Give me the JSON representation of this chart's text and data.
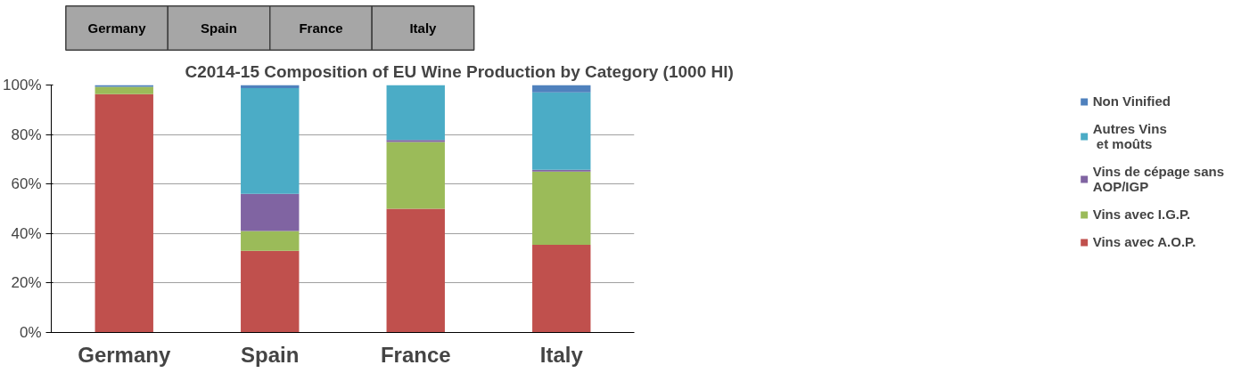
{
  "chart_data": {
    "type": "bar",
    "stacked": true,
    "title": "C2014-15 Composition of EU Wine Production by Category (1000 Hl)",
    "annotations": [
      "Germany",
      "Spain",
      "France",
      "Italy"
    ],
    "categories": [
      "Germany",
      "Spain",
      "France",
      "Italy"
    ],
    "series": [
      {
        "name": "Vins avec A.O.P.",
        "color": "#c0504d",
        "values": [
          96.3,
          33,
          50,
          35.4
        ]
      },
      {
        "name": "Vins avec I.G.P.",
        "color": "#9bbb59",
        "values": [
          3,
          8,
          27,
          29.6
        ]
      },
      {
        "name": "Vins de cépage sans\nAOP/IGP",
        "color": "#8064a2",
        "values": [
          0,
          15,
          0.8,
          0.7
        ]
      },
      {
        "name": "Autres Vins\n et moûts",
        "color": "#4bacc6",
        "values": [
          0,
          42.7,
          22.2,
          31.3
        ]
      },
      {
        "name": "Non Vinified",
        "color": "#4f81bd",
        "values": [
          0.7,
          1.3,
          0,
          3
        ]
      }
    ],
    "ylim": [
      0,
      100
    ],
    "yticks": [
      {
        "value": 0,
        "label": "0%"
      },
      {
        "value": 20,
        "label": "20%"
      },
      {
        "value": 40,
        "label": "40%"
      },
      {
        "value": 60,
        "label": "60%"
      },
      {
        "value": 80,
        "label": "80%"
      },
      {
        "value": 100,
        "label": "100%"
      }
    ],
    "grid": "y",
    "legend": "right"
  }
}
